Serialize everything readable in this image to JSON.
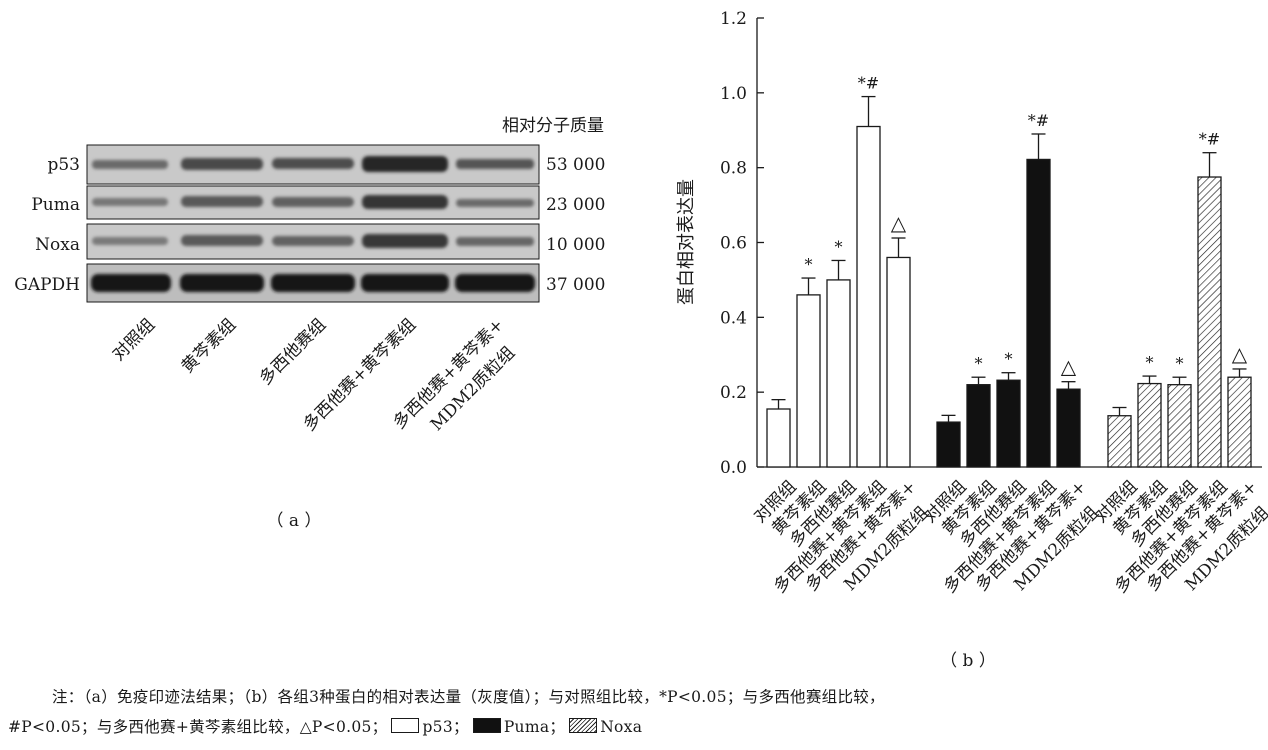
{
  "blot": {
    "header": "相对分子质量",
    "rows": [
      {
        "name": "p53",
        "mw": "53 000"
      },
      {
        "name": "Puma",
        "mw": "23 000"
      },
      {
        "name": "Noxa",
        "mw": "10 000"
      },
      {
        "name": "GAPDH",
        "mw": "37 000"
      }
    ],
    "lanes": [
      "对照组",
      "黄芩素组",
      "多西他赛组",
      "多西他赛+黄芩素组",
      "多西他赛+黄芩素+",
      "MDM2质粒组"
    ],
    "panel_label": "（ a ）"
  },
  "chart_data": {
    "type": "bar",
    "ylabel": "蛋白相对表达量",
    "ylim": [
      0,
      1.2
    ],
    "yticks": [
      "0.0",
      "0.2",
      "0.4",
      "0.6",
      "0.8",
      "1.0",
      "1.2"
    ],
    "categories": [
      "对照组",
      "黄芩素组",
      "多西他赛组",
      "多西他赛+黄芩素组",
      "多西他赛+黄芩素+ MDM2质粒组"
    ],
    "category_line2": "MDM2质粒组",
    "series": [
      {
        "name": "p53",
        "fill": "white",
        "values": [
          0.155,
          0.46,
          0.5,
          0.91,
          0.56
        ],
        "errors": [
          0.025,
          0.045,
          0.052,
          0.08,
          0.052
        ],
        "marks": [
          "",
          "*",
          "*",
          "*#",
          "△"
        ]
      },
      {
        "name": "Puma",
        "fill": "black",
        "values": [
          0.12,
          0.22,
          0.232,
          0.822,
          0.208
        ],
        "errors": [
          0.018,
          0.02,
          0.02,
          0.068,
          0.02
        ],
        "marks": [
          "",
          "*",
          "*",
          "*#",
          "△"
        ]
      },
      {
        "name": "Noxa",
        "fill": "hatched",
        "values": [
          0.137,
          0.223,
          0.22,
          0.775,
          0.24
        ],
        "errors": [
          0.022,
          0.02,
          0.02,
          0.065,
          0.022
        ],
        "marks": [
          "",
          "*",
          "*",
          "*#",
          "△"
        ]
      }
    ],
    "panel_label": "（ b ）"
  },
  "note": {
    "line1": "注：（a）免疫印迹法结果；（b）各组3种蛋白的相对表达量（灰度值）；与对照组比较，*P<0.05；与多西他赛组比较，",
    "line2": "#P<0.05；与多西他赛+黄芩素组比较，△P<0.05；",
    "legend": [
      "p53",
      "Puma",
      "Noxa"
    ],
    "sep": "；"
  },
  "colors": {
    "ink": "#1a1a1a",
    "band": "#3b3b3b",
    "blot_bg": "#c8c8c8"
  }
}
